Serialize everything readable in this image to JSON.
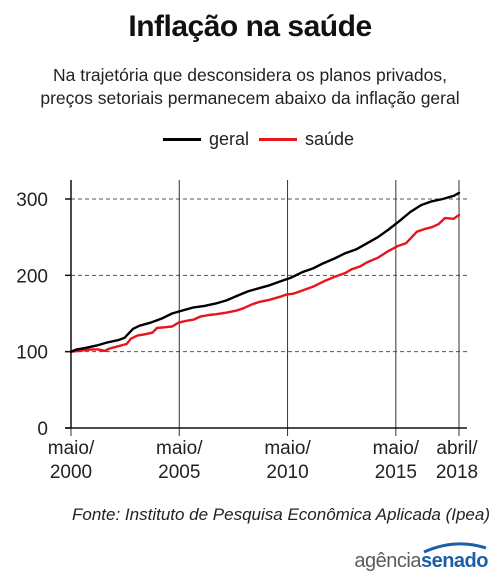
{
  "title": "Inflação na saúde",
  "subtitle_lines": [
    "Na trajetória que desconsidera os planos privados,",
    "preços setoriais permanecem abaixo da inflação geral"
  ],
  "source": "Fonte: Instituto de Pesquisa Econômica Aplicada (Ipea)",
  "logo": {
    "part1": "agência",
    "part2": "senado"
  },
  "colors": {
    "geral": "#000000",
    "saude": "#e8141b",
    "grid": "#555555"
  },
  "chart_data": {
    "type": "line",
    "title": "Inflação na saúde",
    "xlabel": "",
    "ylabel": "",
    "xlim": [
      2000.333,
      2018.25
    ],
    "ylim": [
      0,
      310
    ],
    "yticks": [
      0,
      100,
      200,
      300
    ],
    "xticks": [
      {
        "x": 2000.333,
        "line1": "maio/",
        "line2": "2000"
      },
      {
        "x": 2005.333,
        "line1": "maio/",
        "line2": "2005"
      },
      {
        "x": 2010.333,
        "line1": "maio/",
        "line2": "2010"
      },
      {
        "x": 2015.333,
        "line1": "maio/",
        "line2": "2015"
      },
      {
        "x": 2018.25,
        "line1": "abril/",
        "line2": "2018"
      }
    ],
    "grid": "dashed horizontal at 100, 200, 300; solid vertical at x ticks",
    "legend": "top-center",
    "series": [
      {
        "name": "geral",
        "color": "#000000",
        "points": [
          [
            2000.33,
            100
          ],
          [
            2000.6,
            103
          ],
          [
            2001,
            105
          ],
          [
            2001.5,
            108
          ],
          [
            2002,
            112
          ],
          [
            2002.5,
            115
          ],
          [
            2002.8,
            118
          ],
          [
            2003.0,
            124
          ],
          [
            2003.2,
            130
          ],
          [
            2003.5,
            134
          ],
          [
            2004,
            138
          ],
          [
            2004.5,
            143
          ],
          [
            2005,
            150
          ],
          [
            2005.5,
            154
          ],
          [
            2006,
            158
          ],
          [
            2006.5,
            160
          ],
          [
            2007,
            163
          ],
          [
            2007.5,
            167
          ],
          [
            2008,
            173
          ],
          [
            2008.5,
            179
          ],
          [
            2009,
            183
          ],
          [
            2009.5,
            187
          ],
          [
            2010,
            192
          ],
          [
            2010.5,
            197
          ],
          [
            2011,
            204
          ],
          [
            2011.5,
            209
          ],
          [
            2012,
            216
          ],
          [
            2012.5,
            222
          ],
          [
            2013,
            229
          ],
          [
            2013.5,
            234
          ],
          [
            2014,
            242
          ],
          [
            2014.5,
            250
          ],
          [
            2015,
            260
          ],
          [
            2015.5,
            271
          ],
          [
            2016,
            283
          ],
          [
            2016.5,
            292
          ],
          [
            2017,
            297
          ],
          [
            2017.5,
            300
          ],
          [
            2018,
            304
          ],
          [
            2018.25,
            308
          ]
        ]
      },
      {
        "name": "saúde",
        "color": "#e8141b",
        "points": [
          [
            2000.33,
            100
          ],
          [
            2000.7,
            101
          ],
          [
            2001,
            102
          ],
          [
            2001.3,
            103
          ],
          [
            2001.6,
            103
          ],
          [
            2001.9,
            101
          ],
          [
            2002.1,
            104
          ],
          [
            2002.5,
            107
          ],
          [
            2002.9,
            110
          ],
          [
            2003.1,
            117
          ],
          [
            2003.4,
            121
          ],
          [
            2003.8,
            123
          ],
          [
            2004.1,
            125
          ],
          [
            2004.3,
            131
          ],
          [
            2004.7,
            132
          ],
          [
            2005.0,
            133
          ],
          [
            2005.3,
            138
          ],
          [
            2005.6,
            140
          ],
          [
            2006.0,
            142
          ],
          [
            2006.3,
            146
          ],
          [
            2006.7,
            148
          ],
          [
            2007.0,
            149
          ],
          [
            2007.5,
            151
          ],
          [
            2008.0,
            154
          ],
          [
            2008.3,
            157
          ],
          [
            2008.7,
            162
          ],
          [
            2009.0,
            165
          ],
          [
            2009.5,
            168
          ],
          [
            2010.0,
            172
          ],
          [
            2010.3,
            175
          ],
          [
            2010.6,
            176
          ],
          [
            2011.0,
            180
          ],
          [
            2011.5,
            185
          ],
          [
            2012.0,
            192
          ],
          [
            2012.5,
            198
          ],
          [
            2013.0,
            203
          ],
          [
            2013.3,
            208
          ],
          [
            2013.7,
            212
          ],
          [
            2014.0,
            217
          ],
          [
            2014.5,
            223
          ],
          [
            2015.0,
            232
          ],
          [
            2015.4,
            238
          ],
          [
            2015.8,
            242
          ],
          [
            2016.0,
            248
          ],
          [
            2016.3,
            257
          ],
          [
            2016.7,
            261
          ],
          [
            2017.0,
            263
          ],
          [
            2017.3,
            267
          ],
          [
            2017.6,
            275
          ],
          [
            2018.0,
            274
          ],
          [
            2018.25,
            279
          ]
        ]
      }
    ]
  }
}
